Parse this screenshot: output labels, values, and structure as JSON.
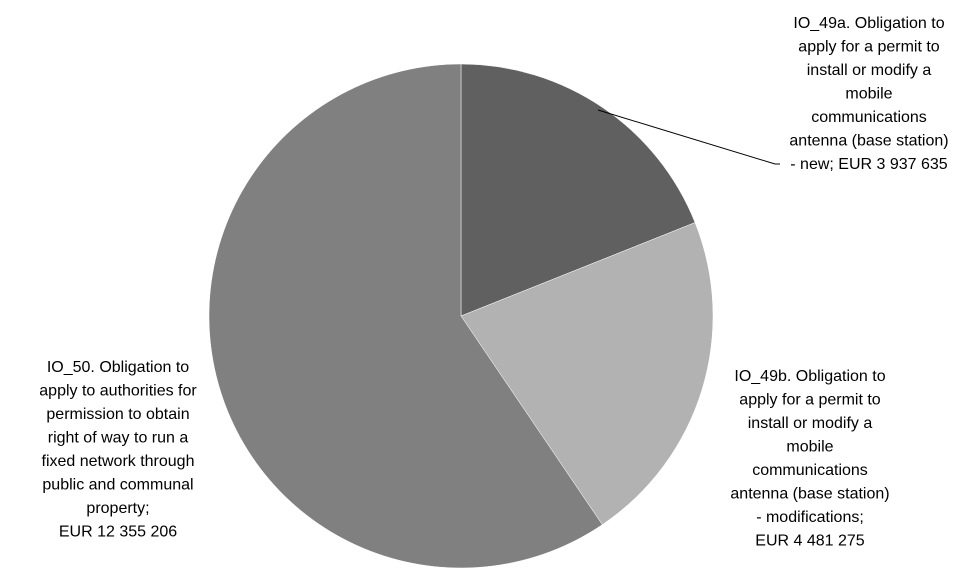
{
  "chart_data": {
    "type": "pie",
    "title": "",
    "legend": "none",
    "slices": [
      {
        "name": "IO_49a",
        "label_lines": [
          "IO_49a.  Obligation to",
          "apply for a permit to",
          "install or modify a",
          "mobile",
          "communications",
          "antenna (base station)",
          "- new;  EUR 3 937 635"
        ],
        "value": 3937635,
        "color": "#606060"
      },
      {
        "name": "IO_49b",
        "label_lines": [
          "IO_49b.  Obligation to",
          "apply for a permit to",
          "install or modify a",
          "mobile",
          "communications",
          "antenna (base station)",
          "- modifications;",
          "EUR 4 481 275"
        ],
        "value": 4481275,
        "color": "#b2b2b2"
      },
      {
        "name": "IO_50",
        "label_lines": [
          "IO_50.  Obligation to",
          "apply to authorities for",
          "permission to obtain",
          "right of way to run a",
          "fixed network through",
          "public and communal",
          "property;",
          "EUR 12 355 206"
        ],
        "value": 12355206,
        "color": "#808080"
      }
    ]
  }
}
